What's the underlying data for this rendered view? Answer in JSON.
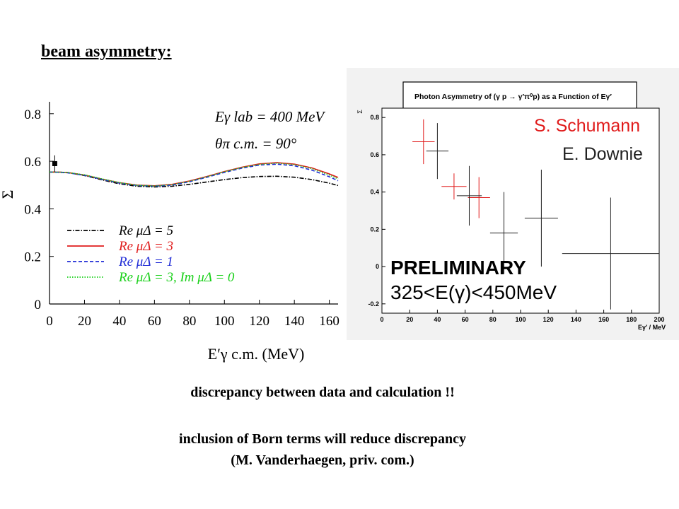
{
  "slide": {
    "title": "beam asymmetry:",
    "caption1": "discrepancy between data and calculation !!",
    "caption2": "inclusion of Born terms will reduce discrepancy",
    "caption3": "(M. Vanderhaegen, priv. com.)"
  },
  "chart_data": [
    {
      "type": "line",
      "title": "",
      "ylabel": "Σ",
      "xlabel": "E′γ c.m. (MeV)",
      "xlim": [
        0,
        165
      ],
      "ylim": [
        0,
        0.85
      ],
      "xticks": [
        0,
        20,
        40,
        60,
        80,
        100,
        120,
        140,
        160
      ],
      "yticks": [
        0,
        0.2,
        0.4,
        0.6,
        0.8
      ],
      "annotation_energy": "Eγ lab = 400 MeV",
      "annotation_angle": "θπ c.m. = 90°",
      "legend_position": "bottom-left",
      "x": [
        0,
        10,
        20,
        30,
        40,
        50,
        60,
        70,
        80,
        90,
        100,
        110,
        120,
        130,
        140,
        150,
        160,
        165
      ],
      "series": [
        {
          "name": "Re μΔ = 5",
          "color": "#000000",
          "dash": "dashdot",
          "values": [
            0.555,
            0.553,
            0.54,
            0.522,
            0.505,
            0.495,
            0.492,
            0.495,
            0.503,
            0.513,
            0.523,
            0.531,
            0.536,
            0.537,
            0.533,
            0.523,
            0.508,
            0.498
          ]
        },
        {
          "name": "Re μΔ = 3",
          "color": "#e01b1b",
          "dash": "solid",
          "values": [
            0.555,
            0.553,
            0.542,
            0.525,
            0.51,
            0.5,
            0.497,
            0.503,
            0.517,
            0.536,
            0.557,
            0.575,
            0.589,
            0.594,
            0.588,
            0.572,
            0.547,
            0.532
          ]
        },
        {
          "name": "Re μΔ = 1",
          "color": "#1f2bd6",
          "dash": "dashed",
          "values": [
            0.555,
            0.552,
            0.541,
            0.524,
            0.508,
            0.498,
            0.495,
            0.5,
            0.514,
            0.533,
            0.553,
            0.571,
            0.584,
            0.588,
            0.581,
            0.563,
            0.535,
            0.518
          ]
        },
        {
          "name": "Re μΔ = 3, Im μΔ = 0",
          "color": "#19d019",
          "dash": "dotted",
          "values": [
            0.555,
            0.553,
            0.543,
            0.526,
            0.51,
            0.499,
            0.496,
            0.502,
            0.516,
            0.535,
            0.556,
            0.574,
            0.587,
            0.592,
            0.586,
            0.569,
            0.542,
            0.526
          ]
        }
      ],
      "data_points": [
        {
          "x": 3,
          "y": 0.59,
          "err": 0.035
        }
      ]
    },
    {
      "type": "scatter",
      "title": "Photon Asymmetry of (γ p → γ′π⁰p) as a  Function of Eγ′",
      "ylabel": "Σ",
      "xlabel": "Eγ′ / MeV",
      "xlim": [
        0,
        200
      ],
      "ylim": [
        -0.25,
        0.85
      ],
      "xticks": [
        0,
        20,
        40,
        60,
        80,
        100,
        120,
        140,
        160,
        180,
        200
      ],
      "yticks": [
        -0.2,
        0,
        0.2,
        0.4,
        0.6,
        0.8
      ],
      "legend": [
        "S. Schumann",
        "E. Downie"
      ],
      "legend_colors": [
        "#e01b1b",
        "#222222"
      ],
      "annotation_prelim": "PRELIMINARY",
      "annotation_range": "325<E(γ)<450MeV",
      "series": [
        {
          "name": "S. Schumann",
          "color": "#e01b1b",
          "points": [
            {
              "x": 30,
              "y": 0.67,
              "xerr": 8,
              "yerr": 0.12
            },
            {
              "x": 52,
              "y": 0.43,
              "xerr": 9,
              "yerr": 0.07
            },
            {
              "x": 70,
              "y": 0.37,
              "xerr": 8,
              "yerr": 0.11
            }
          ]
        },
        {
          "name": "E. Downie",
          "color": "#222222",
          "points": [
            {
              "x": 40,
              "y": 0.62,
              "xerr": 8,
              "yerr": 0.15
            },
            {
              "x": 63,
              "y": 0.38,
              "xerr": 9,
              "yerr": 0.16
            },
            {
              "x": 88,
              "y": 0.18,
              "xerr": 10,
              "yerr": 0.22
            },
            {
              "x": 115,
              "y": 0.26,
              "xerr": 12,
              "yerr": 0.26
            },
            {
              "x": 165,
              "y": 0.07,
              "xerr": 35,
              "yerr": 0.3
            }
          ]
        }
      ]
    }
  ]
}
